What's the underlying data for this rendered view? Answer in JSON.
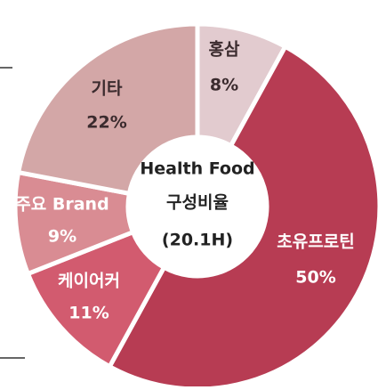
{
  "chart_data": {
    "type": "donut",
    "categories": [
      "홍삼",
      "초유프로틴",
      "케이어커",
      "주요 Brand",
      "기타"
    ],
    "values": [
      8,
      50,
      11,
      9,
      22
    ],
    "value_labels": [
      "8%",
      "50%",
      "11%",
      "9%",
      "22%"
    ],
    "colors": [
      "#e2cbcf",
      "#b73c53",
      "#d25b6f",
      "#d98c93",
      "#d3a7a7"
    ],
    "center_title": [
      "Health Food",
      "구성비율"
    ],
    "center_subtitle": "(20.1H)"
  }
}
